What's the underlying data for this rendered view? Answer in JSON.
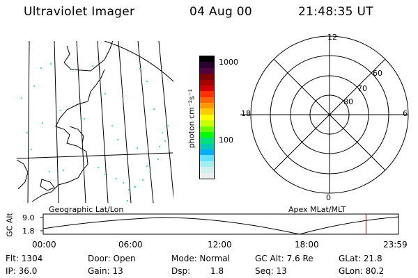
{
  "header": {
    "instrument": "Ultraviolet Imager",
    "date": "04 Aug 00",
    "time": "21:48:35 UT"
  },
  "colorbar": {
    "unit": "photon cm⁻²s⁻¹",
    "ticks": [
      {
        "label": "1000",
        "value": 1000
      },
      {
        "label": "100",
        "value": 100
      }
    ],
    "colors": [
      "#000000",
      "#2b0030",
      "#54003f",
      "#800000",
      "#a80000",
      "#d00000",
      "#ff3000",
      "#ff6600",
      "#ff9900",
      "#ffcc00",
      "#ffff00",
      "#ccff00",
      "#66ff00",
      "#00ff00",
      "#00e080",
      "#00ccb0",
      "#00b0ff",
      "#66e0ff",
      "#a0f0f0",
      "#d0f0f0",
      "#e8f0f0"
    ]
  },
  "polar_plot": {
    "label": "Apex MLat/MLT",
    "mlt_labels": {
      "top": "12",
      "left": "18",
      "right": "6",
      "bottom": "0"
    },
    "lat_labels": [
      "60",
      "70",
      "80"
    ]
  },
  "map": {
    "label": "Geographic Lat/Lon"
  },
  "altitude_plot": {
    "ylabel": "GC Alt",
    "ytick_top": "9.0",
    "ytick_bottom": "1.8",
    "x_ticks": [
      "00:00",
      "06:00",
      "12:00",
      "18:00",
      "23:59"
    ],
    "marker_time_hours": 21.81,
    "marker_color": "#cc0000"
  },
  "status": {
    "flt": "Flt: 1304",
    "ip": "IP: 36.0",
    "door": "Door: Open",
    "gain": "Gain: 13",
    "mode": "Mode: Normal",
    "dsp_label": "Dsp:",
    "dsp_value": "1.8",
    "gc_alt": "GC Alt: 7.6 Re",
    "seq": "Seq: 13",
    "glat": "GLat:  21.8",
    "glon": "GLon:  80.2"
  }
}
